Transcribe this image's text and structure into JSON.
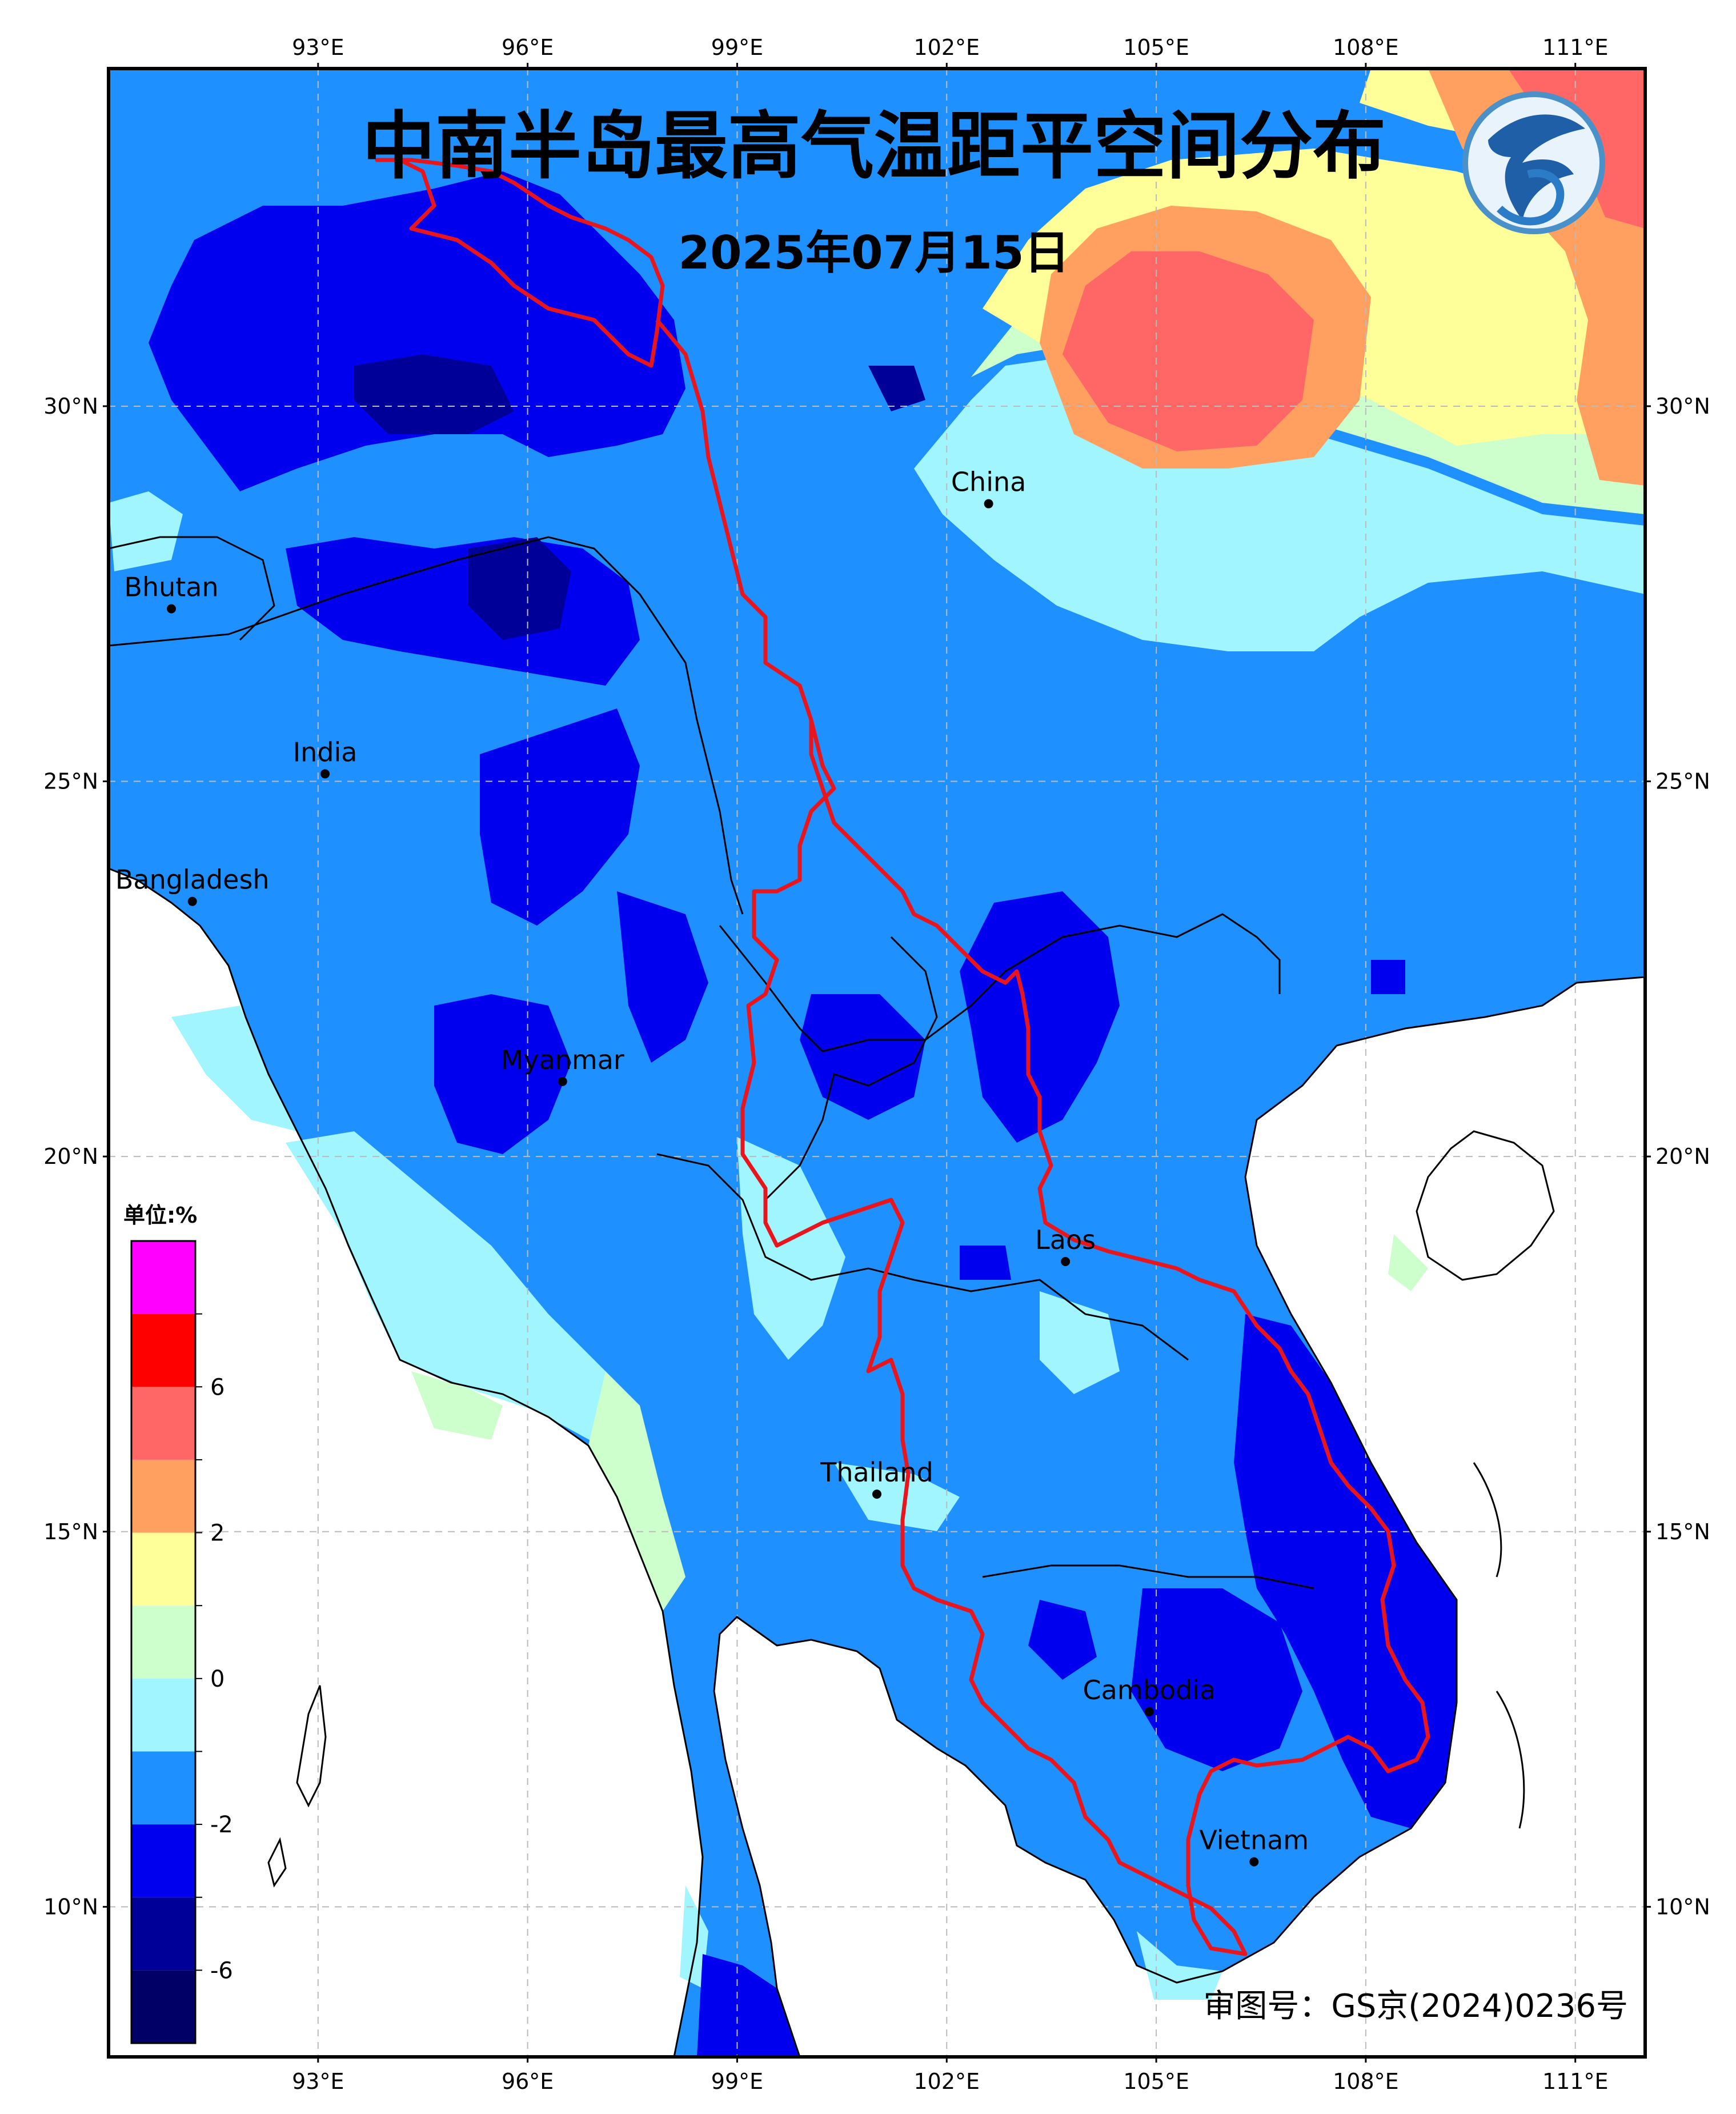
{
  "title": "中南半岛最高气温距平空间分布",
  "date": "2025年07月15日",
  "approval_number": "审图号：GS京(2024)0236号",
  "map": {
    "lon_range": [
      90.0,
      112.0
    ],
    "lat_range": [
      8.0,
      34.5
    ],
    "x_ticks": [
      "93°E",
      "96°E",
      "99°E",
      "102°E",
      "105°E",
      "108°E",
      "111°E"
    ],
    "y_ticks": [
      "30°N",
      "25°N",
      "20°N",
      "15°N",
      "10°N"
    ],
    "grid": true
  },
  "places": [
    {
      "name": "Bhutan",
      "lon": 90.9,
      "lat": 27.3
    },
    {
      "name": "India",
      "lon": 93.1,
      "lat": 25.1
    },
    {
      "name": "Bangladesh",
      "lon": 91.2,
      "lat": 23.4
    },
    {
      "name": "Myanmar",
      "lon": 96.5,
      "lat": 21.0
    },
    {
      "name": "China",
      "lon": 102.6,
      "lat": 28.7
    },
    {
      "name": "Laos",
      "lon": 103.7,
      "lat": 18.6
    },
    {
      "name": "Thailand",
      "lon": 101.0,
      "lat": 15.5
    },
    {
      "name": "Cambodia",
      "lon": 104.9,
      "lat": 12.6
    },
    {
      "name": "Vietnam",
      "lon": 106.4,
      "lat": 10.6
    }
  ],
  "legend": {
    "title": "单位:%",
    "labels": [
      "6",
      "2",
      "0",
      "-2",
      "-6"
    ],
    "colors": [
      "#000066",
      "#000099",
      "#0000ee",
      "#1e90ff",
      "#a0f5ff",
      "#ccffcc",
      "#ffff99",
      "#ffa060",
      "#ff6666",
      "#ff0000",
      "#ff00ff"
    ]
  },
  "colors": {
    "region_boundary": "#e8161c",
    "frame": "#000000",
    "base_blue": "#1e90ff"
  }
}
